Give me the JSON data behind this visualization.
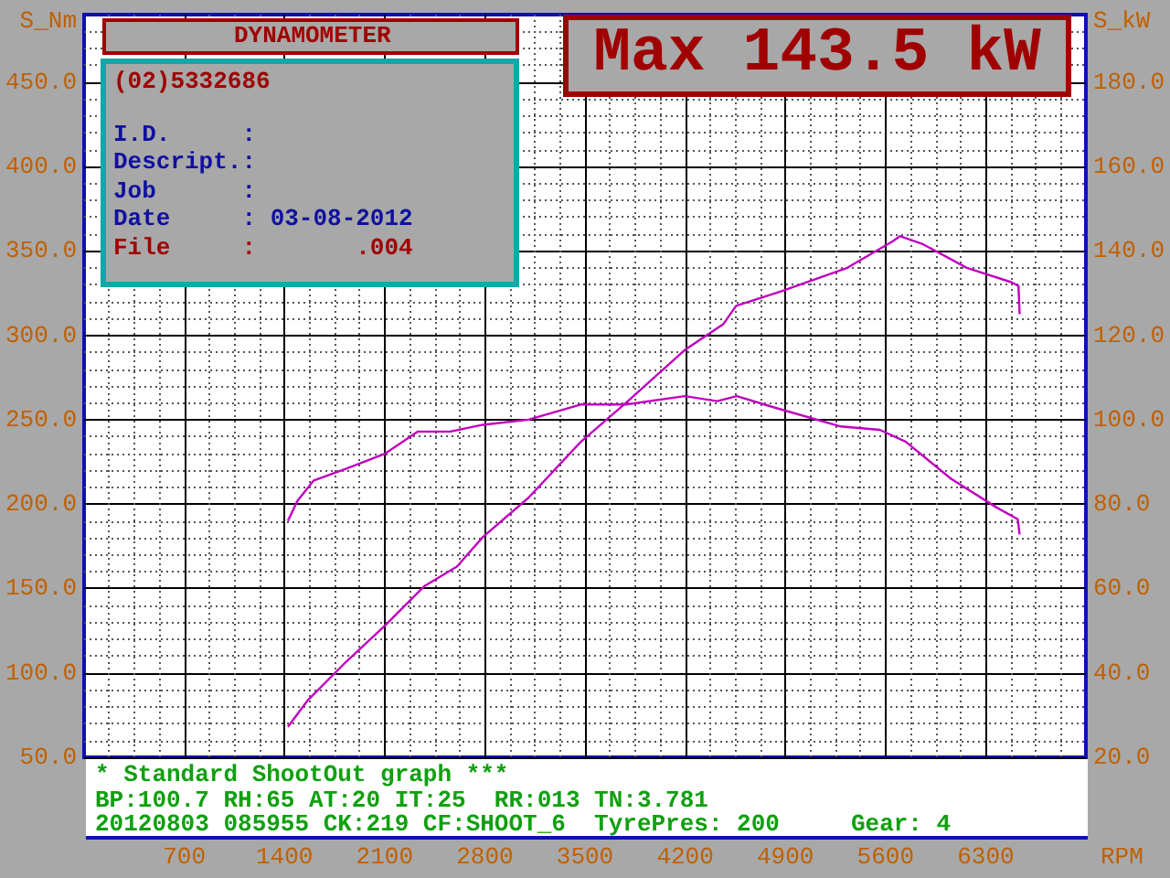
{
  "chart_data": {
    "type": "line",
    "ylabel": "S_Nm",
    "y2label": "S_kW",
    "xlabel": "RPM",
    "annotations": [
      "DYNAMOMETER",
      "(02)5332686",
      "I.D.     :",
      "Descript.:",
      "Job      :",
      "Date     : 03-08-2012",
      "File     :       .004",
      "Max 143.5 kW",
      "* Standard ShootOut graph ***",
      "BP:100.7 RH:65 AT:20 IT:25  RR:013 TN:3.781",
      "20120803 085955 CK:219 CF:SHOOT_6  TyrePres: 200     Gear: 4"
    ],
    "xlim": [
      0,
      7000
    ],
    "xticks": [
      700,
      1400,
      2100,
      2800,
      3500,
      4200,
      4900,
      5600,
      6300
    ],
    "ylim": [
      50,
      490
    ],
    "yticks": [
      {
        "value": 50,
        "label": "50.0"
      },
      {
        "value": 100,
        "label": "100.0"
      },
      {
        "value": 150,
        "label": "150.0"
      },
      {
        "value": 200,
        "label": "200.0"
      },
      {
        "value": 250,
        "label": "250.0"
      },
      {
        "value": 300,
        "label": "300.0"
      },
      {
        "value": 350,
        "label": "350.0"
      },
      {
        "value": 400,
        "label": "400.0"
      },
      {
        "value": 450,
        "label": "450.0"
      }
    ],
    "y2lim": [
      20,
      196
    ],
    "y2ticks": [
      {
        "value": 20,
        "label": "20.0"
      },
      {
        "value": 40,
        "label": "40.0"
      },
      {
        "value": 60,
        "label": "60.0"
      },
      {
        "value": 80,
        "label": "80.0"
      },
      {
        "value": 100,
        "label": "100.0"
      },
      {
        "value": 120,
        "label": "120.0"
      },
      {
        "value": 140,
        "label": "140.0"
      },
      {
        "value": 160,
        "label": "160.0"
      },
      {
        "value": 180,
        "label": "180.0"
      }
    ],
    "grid": true,
    "marker": "none",
    "line_style": "solid",
    "series": [
      {
        "color": "#c000c0",
        "x": [
          1424,
          1491,
          1605,
          1833,
          2105,
          2333,
          2558,
          2787,
          3105,
          3469,
          3787,
          4196,
          4424,
          4560,
          4833,
          5287,
          5560,
          5740,
          6058,
          6376,
          6524,
          6537
        ],
        "values": [
          190,
          202,
          214,
          221,
          230,
          243,
          243,
          247,
          250,
          259,
          259,
          264,
          261,
          264,
          257,
          246,
          244,
          237,
          215,
          198,
          191,
          182
        ]
      },
      {
        "color": "#c000c0",
        "axis": "y2",
        "x": [
          1424,
          1560,
          1833,
          2105,
          2379,
          2605,
          2787,
          3105,
          3469,
          3787,
          4196,
          4468,
          4556,
          4869,
          5333,
          5651,
          5700,
          5855,
          6168,
          6478,
          6529,
          6537
        ],
        "values": [
          27.2,
          33.4,
          42.7,
          51.3,
          60.6,
          65.2,
          72.2,
          81.5,
          94.7,
          104,
          116.5,
          122.7,
          127,
          130.4,
          136,
          142.3,
          143.5,
          141.7,
          136,
          132.6,
          131.7,
          125
        ]
      }
    ]
  }
}
